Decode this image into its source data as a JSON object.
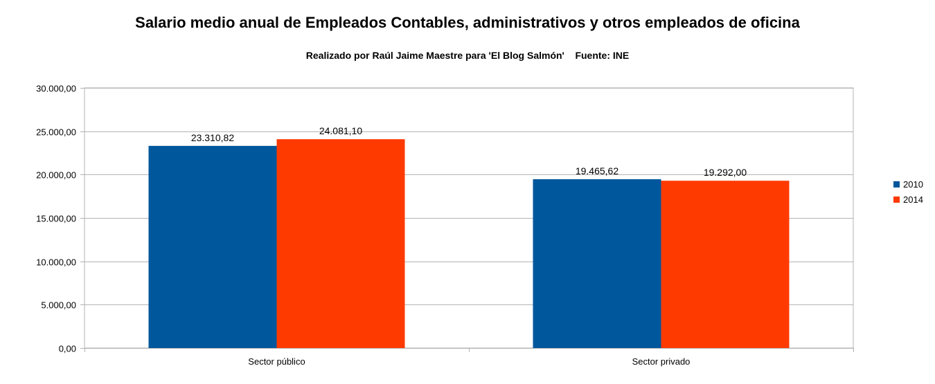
{
  "chart_data": {
    "type": "bar",
    "title": "Salario medio anual de Empleados Contables, administrativos y otros empleados de oficina",
    "subtitle": "Realizado por Raúl Jaime Maestre para 'El Blog Salmón'    Fuente: INE",
    "xlabel": "",
    "ylabel": "",
    "categories": [
      "Sector público",
      "Sector privado"
    ],
    "series": [
      {
        "name": "2010",
        "color": "#00579c",
        "values": [
          23310.82,
          19465.62
        ],
        "labels": [
          "23.310,82",
          "19.465,62"
        ]
      },
      {
        "name": "2014",
        "color": "#ff3a00",
        "values": [
          24081.1,
          19292.0
        ],
        "labels": [
          "24.081,10",
          "19.292,00"
        ]
      }
    ],
    "ylim": [
      0,
      30000
    ],
    "yticks": [
      0,
      5000,
      10000,
      15000,
      20000,
      25000,
      30000
    ],
    "ytick_labels": [
      "0,00",
      "5.000,00",
      "10.000,00",
      "15.000,00",
      "20.000,00",
      "25.000,00",
      "30.000,00"
    ],
    "grid": true,
    "legend_position": "right"
  }
}
